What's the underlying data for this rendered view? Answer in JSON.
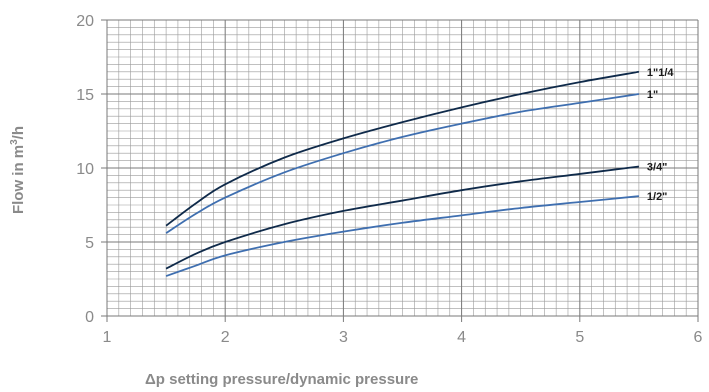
{
  "chart_data": {
    "type": "line",
    "xlabel": "Δp setting pressure/dynamic pressure",
    "ylabel": "Flow in m³/h",
    "ylabel_main": "Flow in m",
    "ylabel_sup": "3",
    "ylabel_end": "/h",
    "xlim": [
      1,
      6
    ],
    "ylim": [
      0,
      20
    ],
    "x_ticks": [
      1,
      2,
      3,
      4,
      5,
      6
    ],
    "y_ticks": [
      0,
      5,
      10,
      15,
      20
    ],
    "x_tick_labels": [
      "1",
      "2",
      "3",
      "4",
      "5",
      "6"
    ],
    "y_tick_labels": [
      "0",
      "5",
      "10",
      "15",
      "20"
    ],
    "grid": true,
    "minor_grid": {
      "x_step": 0.1,
      "y_step": 0.5
    },
    "colors": {
      "grid": "#9a9a9a",
      "axis_text": "#8a8a8a",
      "dark_line": "#0f2a4a",
      "light_line": "#3f6fb0"
    },
    "series": [
      {
        "name": "1\"1/4",
        "color": "#0f2a4a",
        "x": [
          1.5,
          1.75,
          2.0,
          2.5,
          3.0,
          3.5,
          4.0,
          4.5,
          5.0,
          5.5
        ],
        "y": [
          6.1,
          7.6,
          8.9,
          10.7,
          12.0,
          13.1,
          14.1,
          15.0,
          15.8,
          16.5
        ]
      },
      {
        "name": "1\"",
        "color": "#3f6fb0",
        "x": [
          1.5,
          1.75,
          2.0,
          2.5,
          3.0,
          3.5,
          4.0,
          4.5,
          5.0,
          5.5
        ],
        "y": [
          5.6,
          6.9,
          8.0,
          9.7,
          11.0,
          12.1,
          13.0,
          13.8,
          14.4,
          15.0
        ]
      },
      {
        "name": "3/4\"",
        "color": "#0f2a4a",
        "x": [
          1.5,
          1.75,
          2.0,
          2.5,
          3.0,
          3.5,
          4.0,
          4.5,
          5.0,
          5.5
        ],
        "y": [
          3.2,
          4.2,
          5.0,
          6.2,
          7.1,
          7.8,
          8.5,
          9.1,
          9.6,
          10.1
        ]
      },
      {
        "name": "1/2\"",
        "color": "#3f6fb0",
        "x": [
          1.5,
          1.75,
          2.0,
          2.5,
          3.0,
          3.5,
          4.0,
          4.5,
          5.0,
          5.5
        ],
        "y": [
          2.7,
          3.4,
          4.1,
          5.0,
          5.7,
          6.3,
          6.8,
          7.3,
          7.7,
          8.1
        ]
      }
    ]
  }
}
